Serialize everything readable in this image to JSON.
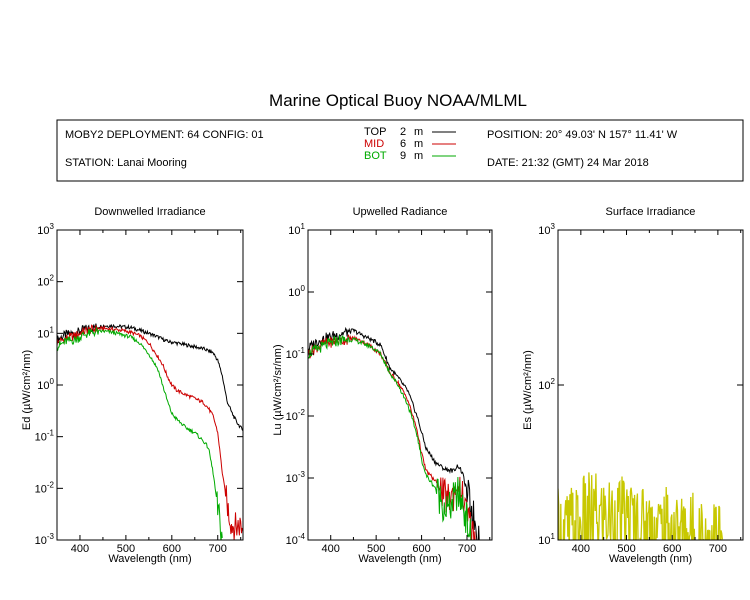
{
  "header": {
    "title": "Marine Optical Buoy NOAA/MLML",
    "deployment": "MOBY2 DEPLOYMENT: 64 CONFIG: 01",
    "station": "STATION: Lanai Mooring",
    "position": "POSITION: 20° 49.03' N   157° 11.41' W",
    "date": "DATE: 21:32 (GMT) 24 Mar 2018"
  },
  "legend": [
    {
      "label": "TOP",
      "depth": "2",
      "unit": "m",
      "color": "#000000"
    },
    {
      "label": "MID",
      "depth": "6",
      "unit": "m",
      "color": "#cc0000"
    },
    {
      "label": "BOT",
      "depth": "9",
      "unit": "m",
      "color": "#00aa00"
    }
  ],
  "chart_data": [
    {
      "type": "line",
      "title": "Downwelled Irradiance",
      "xlabel": "Wavelength (nm)",
      "ylabel": "Ed",
      "ylabel_unit": "(µW/cm²/nm)",
      "xlim": [
        350,
        755
      ],
      "ylim": [
        0.001,
        1000
      ],
      "yscale": "log",
      "xticks": [
        400,
        500,
        600,
        700
      ],
      "yticks": [
        {
          "value": 0.001,
          "label": "10",
          "exp": "-3"
        },
        {
          "value": 0.01,
          "label": "10",
          "exp": "-2"
        },
        {
          "value": 0.1,
          "label": "10",
          "exp": "-1"
        },
        {
          "value": 1,
          "label": "10",
          "exp": "0"
        },
        {
          "value": 10,
          "label": "10",
          "exp": "1"
        },
        {
          "value": 100,
          "label": "10",
          "exp": "2"
        },
        {
          "value": 1000,
          "label": "10",
          "exp": "3"
        }
      ],
      "series": [
        {
          "name": "TOP",
          "color": "#000000",
          "x": [
            350,
            370,
            390,
            410,
            430,
            450,
            470,
            490,
            510,
            530,
            550,
            570,
            590,
            610,
            630,
            650,
            670,
            690,
            700,
            710,
            720,
            730,
            740,
            750,
            755
          ],
          "y": [
            7.5,
            9.5,
            10,
            12,
            13,
            14,
            14,
            13.5,
            13,
            11.5,
            10,
            8.5,
            7,
            6.5,
            6,
            5.5,
            5,
            4.2,
            3,
            1.5,
            0.5,
            0.3,
            0.2,
            0.15,
            0.13
          ]
        },
        {
          "name": "MID",
          "color": "#cc0000",
          "x": [
            350,
            370,
            390,
            410,
            430,
            450,
            470,
            490,
            510,
            530,
            550,
            570,
            580,
            590,
            600,
            610,
            630,
            650,
            670,
            680,
            690,
            700,
            710,
            720,
            730,
            740,
            750,
            755
          ],
          "y": [
            6.5,
            8,
            9,
            11,
            12,
            12.5,
            12,
            11.5,
            10.5,
            9,
            6.5,
            3.5,
            2.5,
            1.5,
            1,
            0.8,
            0.65,
            0.55,
            0.45,
            0.35,
            0.25,
            0.12,
            0.02,
            0.005,
            0.002,
            0.0018,
            0.002,
            0.0015
          ]
        },
        {
          "name": "BOT",
          "color": "#00aa00",
          "x": [
            350,
            370,
            390,
            410,
            430,
            450,
            470,
            490,
            510,
            530,
            550,
            570,
            580,
            590,
            600,
            610,
            630,
            650,
            670,
            680,
            690,
            700,
            710
          ],
          "y": [
            5.5,
            7,
            7.5,
            9.5,
            10.5,
            11,
            10.5,
            9.5,
            8.5,
            6.5,
            4,
            2,
            1,
            0.5,
            0.28,
            0.22,
            0.15,
            0.12,
            0.08,
            0.06,
            0.02,
            0.004,
            0.0011
          ]
        }
      ]
    },
    {
      "type": "line",
      "title": "Upwelled Radiance",
      "xlabel": "Wavelength (nm)",
      "ylabel": "Lu",
      "ylabel_unit": "(µW/cm²/sr/nm)",
      "xlim": [
        350,
        755
      ],
      "ylim": [
        0.0001,
        10
      ],
      "yscale": "log",
      "xticks": [
        400,
        500,
        600,
        700
      ],
      "yticks": [
        {
          "value": 0.0001,
          "label": "10",
          "exp": "-4"
        },
        {
          "value": 0.001,
          "label": "10",
          "exp": "-3"
        },
        {
          "value": 0.01,
          "label": "10",
          "exp": "-2"
        },
        {
          "value": 0.1,
          "label": "10",
          "exp": "-1"
        },
        {
          "value": 1,
          "label": "10",
          "exp": "0"
        },
        {
          "value": 10,
          "label": "10",
          "exp": "1"
        }
      ],
      "series": [
        {
          "name": "TOP",
          "color": "#000000",
          "x": [
            350,
            370,
            390,
            410,
            430,
            450,
            470,
            490,
            510,
            530,
            550,
            570,
            590,
            610,
            630,
            650,
            670,
            680,
            690,
            700,
            710,
            720,
            730
          ],
          "y": [
            0.12,
            0.16,
            0.18,
            0.2,
            0.22,
            0.24,
            0.2,
            0.17,
            0.14,
            0.06,
            0.04,
            0.025,
            0.01,
            0.003,
            0.0018,
            0.0014,
            0.0013,
            0.0016,
            0.0012,
            0.0006,
            0.0003,
            0.00018,
            0.0001
          ]
        },
        {
          "name": "MID",
          "color": "#cc0000",
          "x": [
            350,
            370,
            390,
            410,
            430,
            450,
            470,
            490,
            510,
            530,
            550,
            570,
            590,
            600,
            610,
            630,
            650,
            660,
            670,
            680,
            690,
            700,
            710,
            720
          ],
          "y": [
            0.1,
            0.13,
            0.15,
            0.16,
            0.17,
            0.18,
            0.16,
            0.13,
            0.1,
            0.05,
            0.033,
            0.018,
            0.006,
            0.0025,
            0.0013,
            0.0009,
            0.0005,
            0.00045,
            0.00055,
            0.0007,
            0.0005,
            0.00025,
            0.00015,
            0.0001
          ]
        },
        {
          "name": "BOT",
          "color": "#00aa00",
          "x": [
            350,
            370,
            390,
            410,
            430,
            450,
            470,
            490,
            510,
            530,
            550,
            570,
            590,
            600,
            610,
            630,
            650,
            660,
            670,
            680,
            690,
            700,
            710
          ],
          "y": [
            0.1,
            0.12,
            0.14,
            0.16,
            0.17,
            0.17,
            0.15,
            0.13,
            0.1,
            0.05,
            0.03,
            0.015,
            0.005,
            0.002,
            0.0011,
            0.0007,
            0.00035,
            0.0003,
            0.00045,
            0.00055,
            0.0004,
            0.0002,
            0.0001
          ]
        }
      ]
    },
    {
      "type": "line",
      "title": "Surface Irradiance",
      "xlabel": "Wavelength (nm)",
      "ylabel": "Es",
      "ylabel_unit": "(µW/cm²/nm)",
      "xlim": [
        350,
        755
      ],
      "ylim": [
        10,
        1000
      ],
      "yscale": "log",
      "xticks": [
        400,
        500,
        600,
        700
      ],
      "yticks": [
        {
          "value": 10,
          "label": "10",
          "exp": "1"
        },
        {
          "value": 100,
          "label": "10",
          "exp": "2"
        },
        {
          "value": 1000,
          "label": "10",
          "exp": "3"
        }
      ],
      "series": [
        {
          "name": "Es",
          "color": "#c8c800",
          "x": [
            350,
            370,
            390,
            410,
            430,
            450,
            470,
            490,
            510,
            530,
            550,
            570,
            590,
            610,
            630,
            650,
            670,
            690,
            710
          ],
          "y": [
            10.2,
            10.6,
            11.2,
            12.4,
            13.3,
            14.2,
            13.8,
            13.5,
            13.2,
            12.6,
            12.2,
            11.8,
            11.5,
            11.3,
            11.1,
            11.0,
            10.6,
            10.4,
            10.1
          ]
        }
      ]
    }
  ]
}
